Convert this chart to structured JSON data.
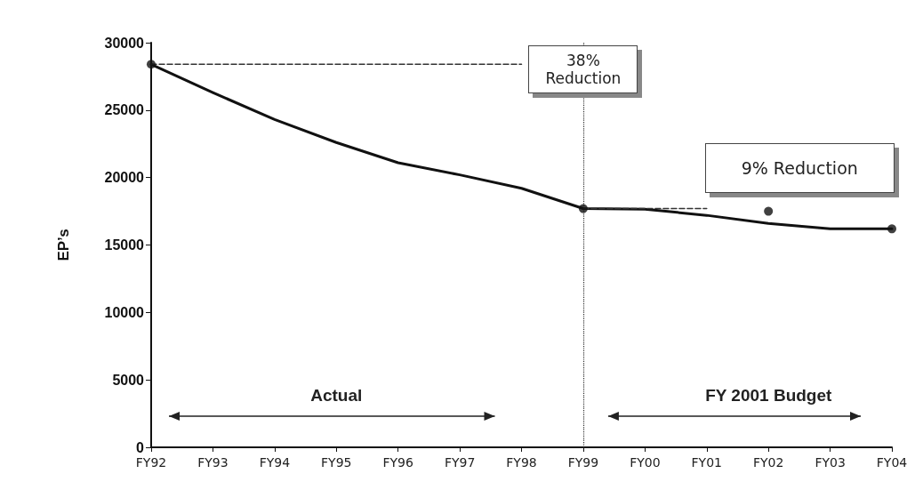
{
  "chart_data": {
    "type": "line",
    "ylabel": "EP’s",
    "categories": [
      "FY92",
      "FY93",
      "FY94",
      "FY95",
      "FY96",
      "FY97",
      "FY98",
      "FY99",
      "FY00",
      "FY01",
      "FY02",
      "FY03",
      "FY04"
    ],
    "series": [
      {
        "type": "line",
        "color": "#111111",
        "values": [
          28400,
          26300,
          24300,
          22600,
          21100,
          20200,
          19200,
          17700,
          17650,
          17200,
          16600,
          16200,
          16200
        ],
        "marker": "none"
      },
      {
        "type": "scatter",
        "color": "#111111",
        "x": [
          "FY92",
          "FY99",
          "FY02",
          "FY04"
        ],
        "values": [
          28400,
          17700,
          17500,
          16200
        ],
        "marker": "circle"
      },
      {
        "type": "line",
        "color": "#333333",
        "x": [
          "FY92",
          "FY98"
        ],
        "values": [
          28400,
          28400
        ],
        "line_style": "dashed",
        "marker": "none"
      },
      {
        "type": "line",
        "color": "#333333",
        "x": [
          "FY99",
          "FY01"
        ],
        "values": [
          17700,
          17700
        ],
        "line_style": "dashed",
        "marker": "none"
      }
    ],
    "ylim": [
      0,
      30000
    ],
    "yticks": [
      0,
      5000,
      10000,
      15000,
      20000,
      25000,
      30000
    ],
    "grid": false,
    "ref_lines": [
      {
        "axis": "x",
        "value": "FY99",
        "line_style": "dotted",
        "color": "#333333"
      }
    ],
    "annotations": [
      "38%\nReduction",
      "9% Reduction",
      "Actual",
      "FY 2001 Budget"
    ]
  }
}
